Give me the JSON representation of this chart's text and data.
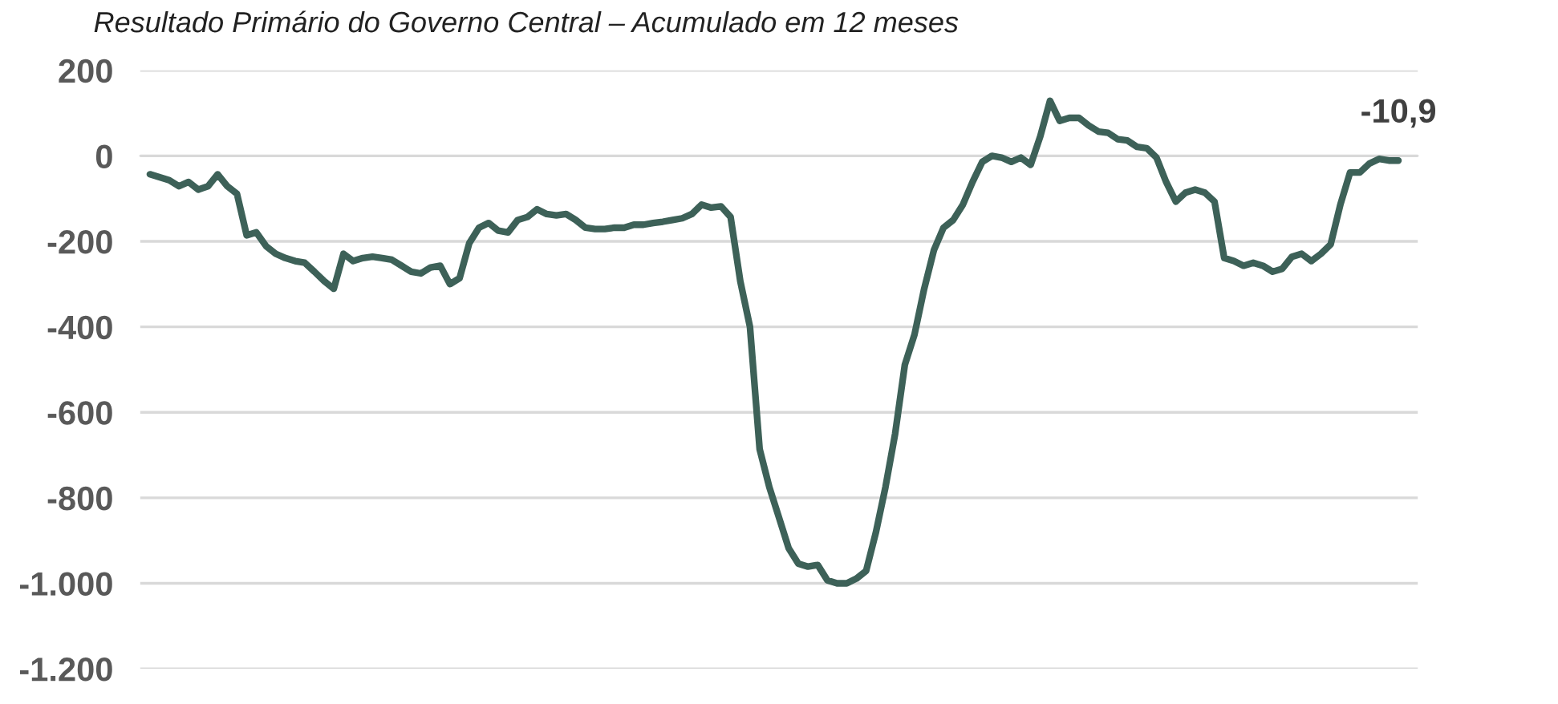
{
  "chart_data": {
    "type": "line",
    "title": "Resultado Primário do Governo Central – Acumulado em 12 meses",
    "categories": [
      null,
      null,
      null,
      null,
      null,
      null,
      null,
      null,
      null,
      null,
      null,
      null,
      null,
      null,
      null,
      null,
      null,
      null,
      null,
      null,
      null,
      null,
      null,
      null,
      null,
      null,
      null,
      null,
      null,
      null,
      null,
      null,
      null,
      null,
      null,
      null,
      null,
      null,
      null,
      null,
      null,
      null,
      null,
      null,
      null,
      null,
      null,
      null,
      null,
      null,
      null,
      null,
      null,
      null,
      null,
      null,
      null,
      null,
      null,
      null,
      null,
      null,
      null,
      null,
      null,
      null,
      null,
      null,
      null,
      null,
      null,
      null,
      null,
      null,
      null,
      null,
      null,
      null,
      null,
      null,
      null,
      null,
      null,
      null,
      null,
      null,
      null,
      null,
      null,
      null,
      null,
      null,
      null,
      null,
      null,
      null,
      null,
      null,
      null,
      null,
      null,
      null,
      null,
      null,
      null,
      null,
      null,
      null,
      null,
      null,
      null,
      null,
      null,
      null,
      null,
      null,
      null,
      null,
      null,
      null,
      null,
      null,
      null,
      null,
      null,
      null,
      null,
      null,
      null,
      null
    ],
    "series": [
      {
        "color": "#3d6158",
        "values": [
          -43,
          -50,
          -57,
          -71,
          -61,
          -79,
          -71,
          -43,
          -71,
          -89,
          -186,
          -179,
          -211,
          -229,
          -239,
          -246,
          -250,
          -271,
          -293,
          -311,
          -229,
          -246,
          -239,
          -236,
          -239,
          -243,
          -257,
          -271,
          -275,
          -261,
          -257,
          -300,
          -286,
          -204,
          -168,
          -157,
          -175,
          -179,
          -150,
          -143,
          -125,
          -136,
          -139,
          -136,
          -150,
          -168,
          -171,
          -171,
          -168,
          -168,
          -161,
          -161,
          -157,
          -154,
          -150,
          -146,
          -136,
          -114,
          -121,
          -118,
          -143,
          -293,
          -400,
          -686,
          -775,
          -846,
          -918,
          -954,
          -961,
          -957,
          -993,
          -1000,
          -1000,
          -989,
          -971,
          -882,
          -775,
          -650,
          -489,
          -418,
          -311,
          -221,
          -168,
          -150,
          -114,
          -61,
          -14,
          0,
          -4,
          -14,
          -4,
          -21,
          46,
          129,
          82,
          89,
          89,
          71,
          57,
          54,
          39,
          36,
          21,
          18,
          -4,
          -61,
          -107,
          -86,
          -79,
          -86,
          -107,
          -239,
          -246,
          -257,
          -250,
          -257,
          -271,
          -264,
          -236,
          -229,
          -246,
          -229,
          -207,
          -114,
          -39,
          -39,
          -18,
          -7,
          -10.9,
          -10.9
        ]
      }
    ],
    "ylim": [
      -1200,
      200
    ],
    "yticks": [
      200,
      0,
      -200,
      -400,
      -600,
      -800,
      {
        "value": -1000,
        "label": "-1.000"
      },
      {
        "value": -1200,
        "label": "-1.200"
      }
    ],
    "tick_labels": "y",
    "grid": "y",
    "annotations": [
      {
        "text": "-10,9",
        "y": -10.9
      }
    ]
  }
}
